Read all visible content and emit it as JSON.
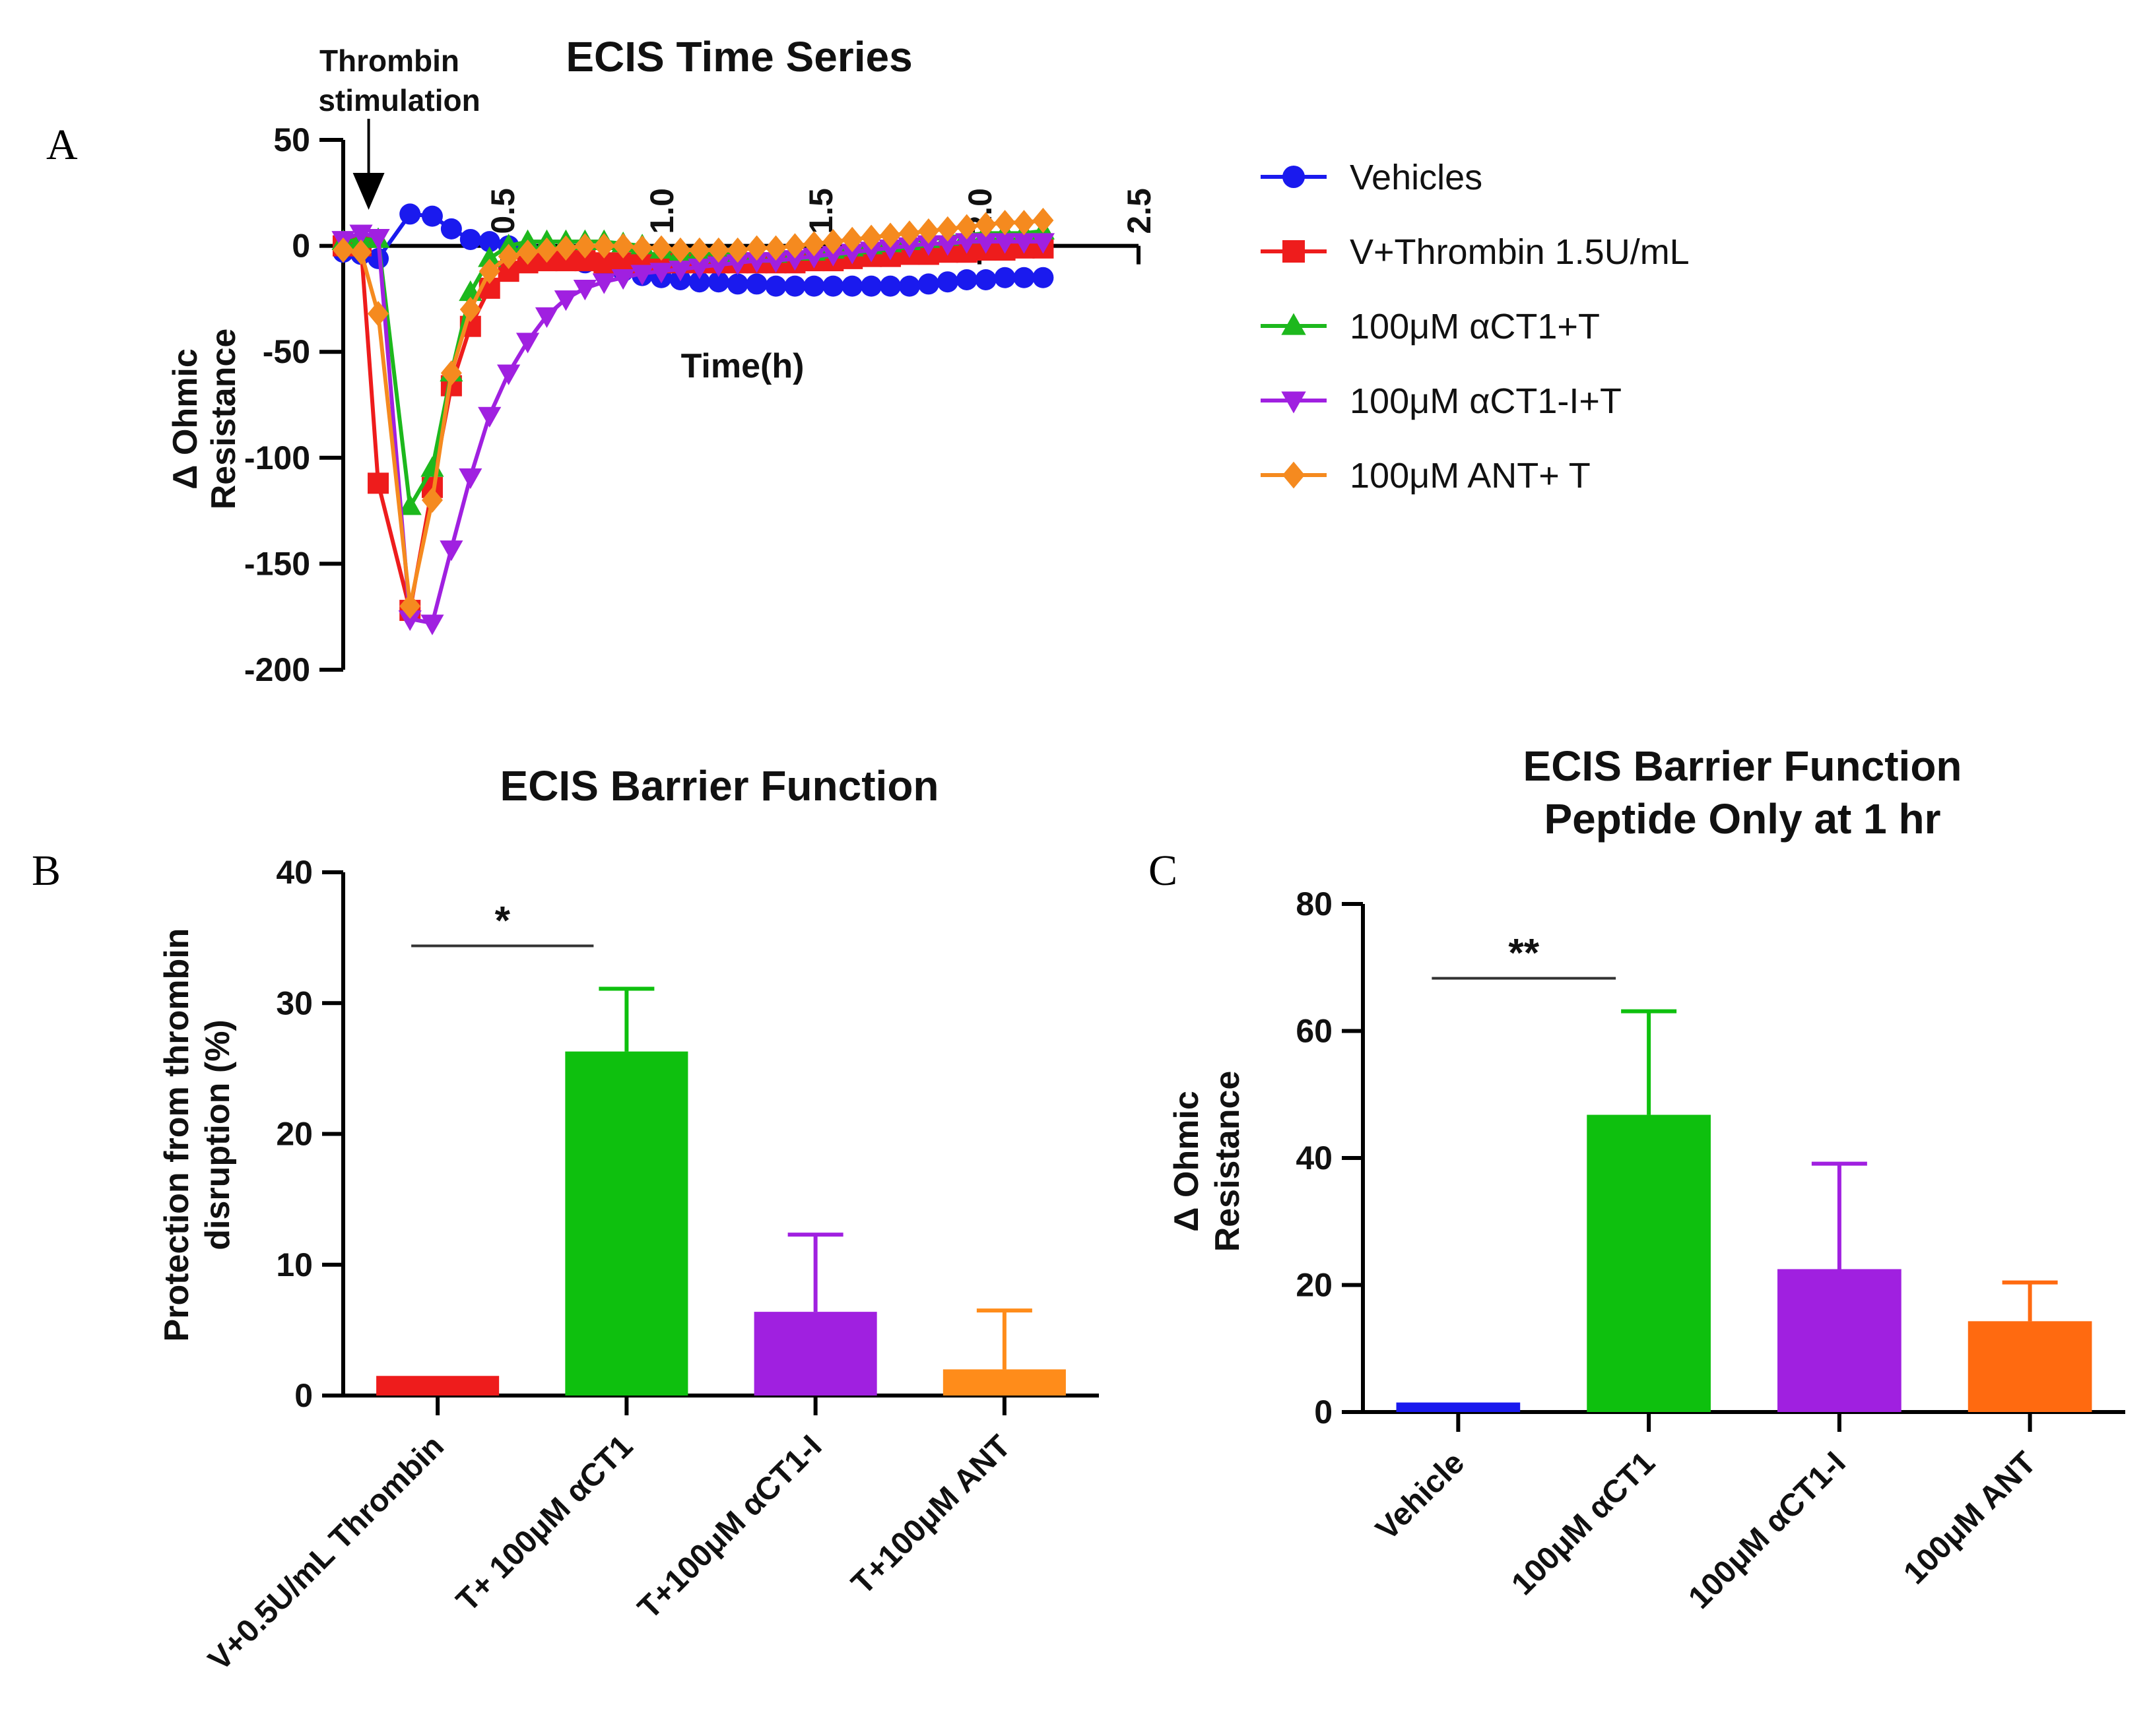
{
  "panels": {
    "a": "A",
    "b": "B",
    "c": "C"
  },
  "chart_data": [
    {
      "type": "line",
      "title": "ECIS Time Series",
      "xlabel": "Time(h)",
      "ylabel": "Δ Ohmic Resistance",
      "ylabel_lines": [
        "Δ  Ohmic",
        "Resistance"
      ],
      "xlim": [
        0,
        2.5
      ],
      "ylim": [
        -200,
        50
      ],
      "xticks": [
        0.5,
        1.0,
        1.5,
        2.0,
        2.5
      ],
      "xtick_labels": [
        "0.5",
        "1.0",
        "1.5",
        "2.0",
        "2.5"
      ],
      "yticks": [
        50,
        0,
        -50,
        -100,
        -150,
        -200
      ],
      "ytick_labels": [
        "50",
        "0",
        "-50",
        "-100",
        "-150",
        "-200"
      ],
      "annotation": {
        "lines": [
          "Thrombin",
          "stimulation"
        ],
        "x": 0.08
      },
      "legend_position": "right",
      "x": [
        0,
        0.056,
        0.11,
        0.21,
        0.28,
        0.34,
        0.4,
        0.46,
        0.52,
        0.58,
        0.64,
        0.7,
        0.76,
        0.82,
        0.88,
        0.94,
        1.0,
        1.06,
        1.12,
        1.18,
        1.24,
        1.3,
        1.36,
        1.42,
        1.48,
        1.54,
        1.6,
        1.66,
        1.72,
        1.78,
        1.84,
        1.9,
        1.96,
        2.02,
        2.08,
        2.14,
        2.2
      ],
      "series": [
        {
          "name": "Vehicles",
          "color": "#1a1aee",
          "marker": "circle",
          "values": [
            -3,
            -4,
            -6,
            15,
            14,
            8,
            3,
            2,
            0,
            -2,
            -4,
            -6,
            -8,
            -10,
            -12,
            -14,
            -15,
            -16,
            -17,
            -17,
            -18,
            -18,
            -19,
            -19,
            -19,
            -19,
            -19,
            -19,
            -19,
            -19,
            -18,
            -17,
            -16,
            -16,
            -15,
            -15,
            -15
          ]
        },
        {
          "name": "V+Thrombin 1.5U/mL",
          "color": "#ee1c1c",
          "marker": "square",
          "values": [
            0,
            0,
            -112,
            -172,
            -114,
            -66,
            -38,
            -20,
            -12,
            -8,
            -7,
            -7,
            -7,
            -8,
            -8,
            -8,
            -8,
            -8,
            -8,
            -8,
            -8,
            -8,
            -8,
            -8,
            -7,
            -7,
            -6,
            -5,
            -5,
            -4,
            -4,
            -3,
            -3,
            -2,
            -2,
            -1,
            -1
          ]
        },
        {
          "name": "100μM αCT1+T",
          "color": "#1db81d",
          "marker": "triangle",
          "values": [
            2,
            3,
            3,
            -123,
            -105,
            -60,
            -22,
            -6,
            0,
            2,
            2,
            2,
            2,
            2,
            1,
            0,
            -2,
            -3,
            -3,
            -4,
            -4,
            -4,
            -4,
            -3,
            -3,
            -2,
            -1,
            0,
            1,
            2,
            3,
            4,
            5,
            6,
            6,
            6,
            7
          ]
        },
        {
          "name": "100μM αCT1-I+T",
          "color": "#a020e0",
          "marker": "triangle-down",
          "values": [
            3,
            6,
            4,
            -176,
            -178,
            -143,
            -109,
            -80,
            -60,
            -45,
            -33,
            -25,
            -20,
            -17,
            -15,
            -13,
            -12,
            -11,
            -10,
            -9,
            -8,
            -7,
            -7,
            -6,
            -5,
            -4,
            -3,
            -2,
            -1,
            0,
            1,
            1,
            2,
            2,
            2,
            2,
            2
          ]
        },
        {
          "name": "100μM ANT+ T",
          "color": "#f58a1f",
          "marker": "diamond",
          "values": [
            -2,
            -3,
            -32,
            -170,
            -120,
            -60,
            -30,
            -12,
            -5,
            -3,
            -2,
            -1,
            0,
            0,
            0,
            -1,
            -1,
            -2,
            -2,
            -2,
            -2,
            -1,
            -1,
            0,
            1,
            2,
            3,
            4,
            5,
            6,
            7,
            8,
            9,
            10,
            11,
            11,
            12
          ]
        }
      ]
    },
    {
      "type": "bar",
      "title": "ECIS Barrier Function",
      "ylabel": "Protection from thrombin disruption (%)",
      "ylabel_lines": [
        "Protection from thrombin",
        "disruption  (%)"
      ],
      "ylim": [
        0,
        40
      ],
      "yticks": [
        0,
        10,
        20,
        30,
        40
      ],
      "ytick_labels": [
        "0",
        "10",
        "20",
        "30",
        "40"
      ],
      "categories": [
        "V+0.5U/mL Thrombin",
        "T+ 100μM αCT1",
        "T+100μM αCT1-I",
        "T+100μM ANT"
      ],
      "values": [
        1.5,
        26.3,
        6.4,
        2.0
      ],
      "errors": [
        0,
        4.8,
        5.9,
        4.5
      ],
      "colors": [
        "#ee1c1c",
        "#0ec00e",
        "#a020e0",
        "#ff8c1a"
      ],
      "significance": {
        "from": 0,
        "to": 1,
        "label": "*"
      }
    },
    {
      "type": "bar",
      "title": "ECIS Barrier  Function Peptide Only at 1 hr",
      "title_lines": [
        "ECIS Barrier  Function",
        "Peptide Only at 1 hr"
      ],
      "ylabel": "Δ Ohmic Resistance",
      "ylabel_lines": [
        "Δ  Ohmic",
        "Resistance"
      ],
      "ylim": [
        0,
        80
      ],
      "yticks": [
        0,
        20,
        40,
        60,
        80
      ],
      "ytick_labels": [
        "0",
        "20",
        "40",
        "60",
        "80"
      ],
      "categories": [
        "Vehicle",
        "100μM αCT1",
        "100μM αCT1-I",
        "100μM ANT"
      ],
      "values": [
        1.5,
        46.8,
        22.5,
        14.3
      ],
      "errors": [
        0,
        16.3,
        16.6,
        6.1
      ],
      "colors": [
        "#1a1aee",
        "#0ec00e",
        "#a020e0",
        "#ff6a10"
      ],
      "significance": {
        "from": 0,
        "to": 1,
        "label": "**"
      }
    }
  ]
}
